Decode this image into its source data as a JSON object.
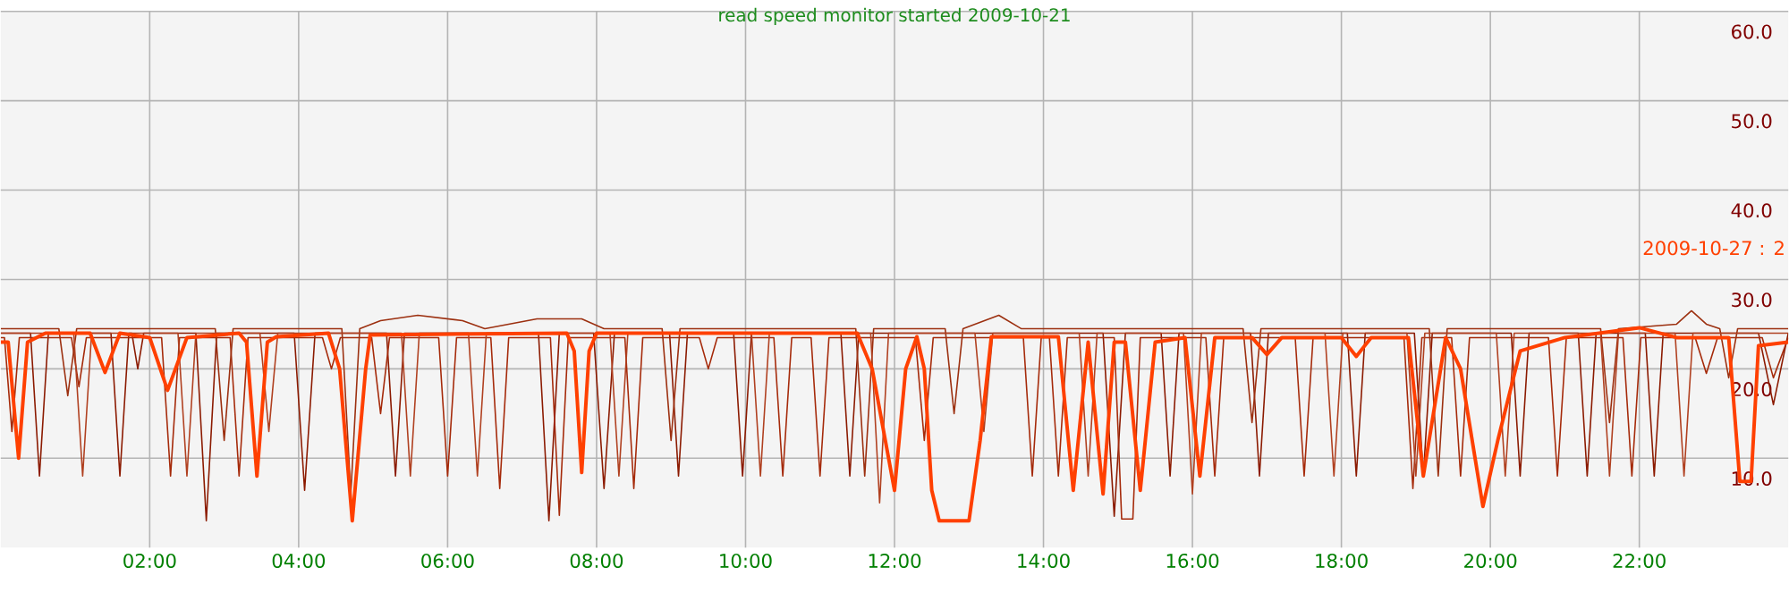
{
  "chart_data": {
    "type": "line",
    "title": "read speed monitor started 2009-10-21",
    "xlim": [
      0,
      24
    ],
    "ylim": [
      0,
      60
    ],
    "xticks": [
      {
        "value": 2,
        "label": "02:00"
      },
      {
        "value": 4,
        "label": "04:00"
      },
      {
        "value": 6,
        "label": "06:00"
      },
      {
        "value": 8,
        "label": "08:00"
      },
      {
        "value": 10,
        "label": "10:00"
      },
      {
        "value": 12,
        "label": "12:00"
      },
      {
        "value": 14,
        "label": "14:00"
      },
      {
        "value": 16,
        "label": "16:00"
      },
      {
        "value": 18,
        "label": "18:00"
      },
      {
        "value": 20,
        "label": "20:00"
      },
      {
        "value": 22,
        "label": "22:00"
      }
    ],
    "yticks": [
      {
        "value": 10,
        "label": "10.0"
      },
      {
        "value": 20,
        "label": "20.0"
      },
      {
        "value": 30,
        "label": "30.0"
      },
      {
        "value": 40,
        "label": "40.0"
      },
      {
        "value": 50,
        "label": "50.0"
      },
      {
        "value": 60,
        "label": "60.0"
      }
    ],
    "grid": true,
    "marker": "none",
    "line_style": "solid",
    "series": [
      {
        "color": "#8b1a00",
        "x": [
          0,
          0.4,
          0.52,
          0.64,
          1.48,
          1.6,
          1.72,
          1.76,
          1.84,
          1.92,
          2.62,
          2.76,
          2.9,
          3.94,
          4.08,
          4.22,
          5.18,
          5.3,
          5.42,
          7.22,
          7.36,
          7.5,
          7.96,
          8.1,
          8.24,
          8.98,
          9.1,
          9.22,
          9.84,
          9.96,
          10.08,
          11.28,
          11.4,
          11.52,
          14.8,
          14.95,
          15.1,
          15.58,
          15.7,
          15.82,
          16.78,
          16.9,
          17.02,
          18.08,
          18.2,
          18.32,
          18.98,
          19.1,
          19.22,
          20.28,
          20.4,
          20.52,
          21.18,
          21.3,
          21.42,
          22.08,
          22.2,
          22.32,
          23.6,
          23.8,
          24
        ],
        "values": [
          24,
          24,
          8,
          24,
          24,
          8,
          24,
          24,
          20,
          24,
          24,
          3,
          24,
          24,
          6.4,
          24,
          24,
          8,
          24,
          24,
          3,
          24,
          24,
          6.6,
          24,
          24,
          8,
          24,
          24,
          8,
          24,
          24,
          8,
          24,
          24,
          3.5,
          24,
          24,
          8,
          24,
          24,
          8,
          24,
          24,
          8,
          24,
          24,
          8,
          24,
          24,
          8,
          24,
          24,
          8,
          24,
          24,
          8,
          24,
          24,
          16,
          24
        ]
      },
      {
        "color": "#a52a0a",
        "x": [
          0,
          0.05,
          0.15,
          0.25,
          0.95,
          1.05,
          1.15,
          2.16,
          2.28,
          2.4,
          3.08,
          3.2,
          3.32,
          4.32,
          4.44,
          4.56,
          4.98,
          5.1,
          5.22,
          5.88,
          6.0,
          6.12,
          6.58,
          6.7,
          6.82,
          7.38,
          7.5,
          7.62,
          8.38,
          8.5,
          8.62,
          9.38,
          9.5,
          9.62,
          10.38,
          10.5,
          10.62,
          10.88,
          11,
          11.12,
          12.28,
          12.4,
          12.52,
          13.73,
          13.85,
          13.97,
          14.08,
          14.2,
          14.32,
          14.95,
          15.05,
          15.2,
          15.3,
          16.18,
          16.3,
          16.42,
          17.38,
          17.5,
          17.62,
          18.84,
          18.96,
          19.08,
          19.48,
          19.6,
          19.72,
          20.78,
          20.9,
          21.02,
          21.78,
          21.9,
          22.02,
          22.75,
          22.9,
          23.05,
          23.65,
          23.8,
          24
        ],
        "values": [
          23.5,
          23.5,
          13,
          23.5,
          23.5,
          18,
          23.5,
          23.5,
          8,
          23.5,
          23.5,
          8,
          23.5,
          23.5,
          20,
          23.5,
          23.5,
          15,
          23.5,
          23.5,
          8,
          23.5,
          23.5,
          6.6,
          23.5,
          23.5,
          3.6,
          23.5,
          23.5,
          6.6,
          23.5,
          23.5,
          20,
          23.5,
          23.5,
          8,
          23.5,
          23.5,
          8,
          23.5,
          23.5,
          12,
          23.5,
          23.5,
          8,
          23.5,
          23.5,
          8,
          23.5,
          23.5,
          3.2,
          3.2,
          23.5,
          23.5,
          8,
          23.5,
          23.5,
          8,
          23.5,
          23.5,
          6.6,
          23.5,
          23.5,
          8,
          23.5,
          23.5,
          8,
          23.5,
          23.5,
          8,
          23.5,
          23.5,
          19.5,
          23.5,
          23.5,
          19,
          23.5
        ]
      },
      {
        "color": "#9c3010",
        "x": [
          0,
          0.78,
          0.9,
          1.02,
          2.88,
          3.0,
          3.12,
          4.58,
          4.7,
          4.82,
          5.1,
          5.6,
          6.2,
          6.5,
          7.2,
          7.8,
          8.1,
          8.88,
          9.0,
          9.12,
          11.48,
          11.6,
          11.72,
          12.68,
          12.8,
          12.92,
          13.4,
          13.7,
          16.68,
          16.8,
          16.92,
          19.18,
          19.3,
          19.42,
          21.48,
          21.6,
          21.72,
          22.5,
          22.7,
          22.9,
          23.08,
          23.2,
          23.32,
          24
        ],
        "values": [
          24.5,
          24.5,
          17,
          24.5,
          24.5,
          12,
          24.5,
          24.5,
          6,
          24.5,
          25.4,
          26,
          25.4,
          24.5,
          25.6,
          25.6,
          24.5,
          24.5,
          12,
          24.5,
          24.5,
          8,
          24.5,
          24.5,
          15,
          24.5,
          26,
          24.5,
          24.5,
          14,
          24.5,
          24.5,
          8,
          24.5,
          24.5,
          14,
          24.5,
          25,
          26.5,
          25,
          24.5,
          19,
          24.5,
          24.5
        ]
      },
      {
        "color": "#b04020",
        "x": [
          0,
          0.98,
          1.1,
          1.22,
          2.38,
          2.5,
          2.62,
          3.48,
          3.6,
          3.72,
          5.38,
          5.5,
          5.62,
          6.28,
          6.4,
          6.52,
          8.18,
          8.3,
          8.42,
          10.08,
          10.2,
          10.32,
          11.68,
          11.8,
          11.92,
          13.08,
          13.2,
          13.32,
          14.48,
          14.6,
          14.72,
          15.88,
          16,
          16.12,
          17.78,
          17.9,
          18.02,
          18.88,
          19.0,
          19.12,
          20.08,
          20.2,
          20.32,
          21.48,
          21.6,
          21.72,
          22.48,
          22.6,
          22.72,
          24
        ],
        "values": [
          24,
          24,
          8,
          24,
          24,
          8,
          24,
          24,
          13,
          24,
          24,
          8,
          24,
          24,
          8,
          24,
          24,
          8,
          24,
          24,
          8,
          24,
          24,
          5,
          24,
          24,
          13,
          24,
          24,
          8,
          24,
          24,
          6,
          24,
          24,
          8,
          24,
          24,
          8,
          24,
          24,
          8,
          24,
          24,
          8,
          24,
          24,
          8,
          24,
          24
        ]
      },
      {
        "name": "2009-10-27 : 2",
        "color": "#ff4000",
        "x": [
          0,
          0.1,
          0.24,
          0.36,
          0.6,
          1.2,
          1.4,
          1.6,
          2.0,
          2.24,
          2.5,
          3.2,
          3.3,
          3.44,
          3.58,
          3.7,
          4.4,
          4.55,
          4.72,
          4.9,
          4.96,
          7.6,
          7.7,
          7.8,
          7.9,
          8.0,
          11.5,
          11.7,
          12.0,
          12.15,
          12.3,
          12.4,
          12.5,
          12.6,
          13.0,
          13.15,
          13.3,
          14.2,
          14.4,
          14.6,
          14.8,
          14.95,
          15.1,
          15.3,
          15.5,
          15.9,
          16.1,
          16.3,
          16.8,
          17.0,
          17.2,
          18.0,
          18.2,
          18.4,
          18.9,
          19.1,
          19.4,
          19.6,
          19.9,
          20.1,
          20.4,
          21.0,
          22.0,
          22.5,
          23.2,
          23.35,
          23.5,
          23.6,
          24
        ],
        "values": [
          23,
          23,
          10,
          23,
          24,
          24,
          19.6,
          24,
          23.5,
          17.6,
          23.5,
          24,
          23,
          8,
          23,
          23.6,
          24,
          20,
          3,
          20,
          23.8,
          24,
          22,
          8.4,
          22,
          24,
          24,
          20,
          6.4,
          20,
          23.6,
          20,
          6.4,
          3,
          3,
          12,
          23.6,
          23.6,
          6.4,
          23,
          6,
          23,
          23,
          6.4,
          23,
          23.5,
          8,
          23.5,
          23.5,
          21.6,
          23.5,
          23.5,
          21.4,
          23.5,
          23.5,
          8,
          23.5,
          20,
          4.6,
          12,
          22,
          23.5,
          24.6,
          23.5,
          23.5,
          7.4,
          7.4,
          22.6,
          23
        ]
      }
    ]
  }
}
